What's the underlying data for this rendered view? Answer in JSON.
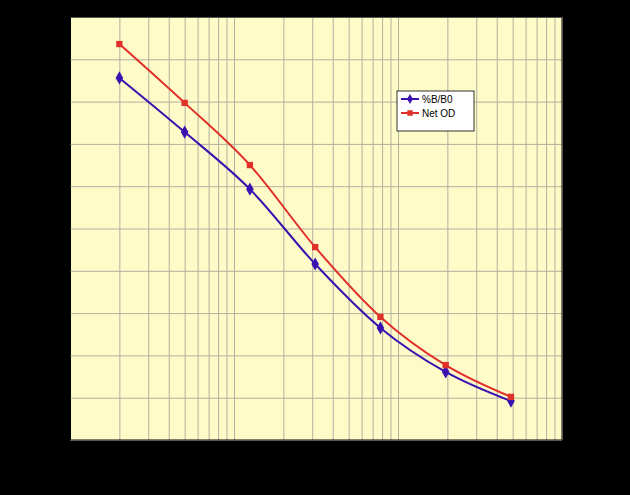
{
  "chart_data": {
    "type": "line",
    "x": [
      2,
      5,
      12.5,
      31.25,
      78.125,
      195.3,
      488.3
    ],
    "series": [
      {
        "name": "%B/B0",
        "color": "#3a12b0",
        "marker": "diamond",
        "values": [
          85.6,
          72.8,
          59.3,
          41.6,
          26.5,
          16.1,
          9.2
        ]
      },
      {
        "name": "Net OD",
        "color": "#e0302a",
        "marker": "square",
        "values": [
          93.6,
          79.7,
          65.0,
          45.6,
          29.1,
          17.7,
          10.2
        ]
      }
    ],
    "xlim": [
      1,
      1000
    ],
    "xticks": [
      1,
      2,
      3,
      4,
      5,
      6,
      7,
      8,
      9,
      10,
      20,
      30,
      40,
      50,
      60,
      70,
      80,
      90,
      100,
      200,
      300,
      400,
      500,
      600,
      700,
      800,
      900,
      1000
    ],
    "ylim": [
      0,
      100
    ],
    "yticks": [
      0,
      10,
      20,
      30,
      40,
      50,
      60,
      70,
      80,
      90,
      100
    ],
    "log": "x",
    "grid": true,
    "legend": "top-right",
    "tick_labels": false
  }
}
